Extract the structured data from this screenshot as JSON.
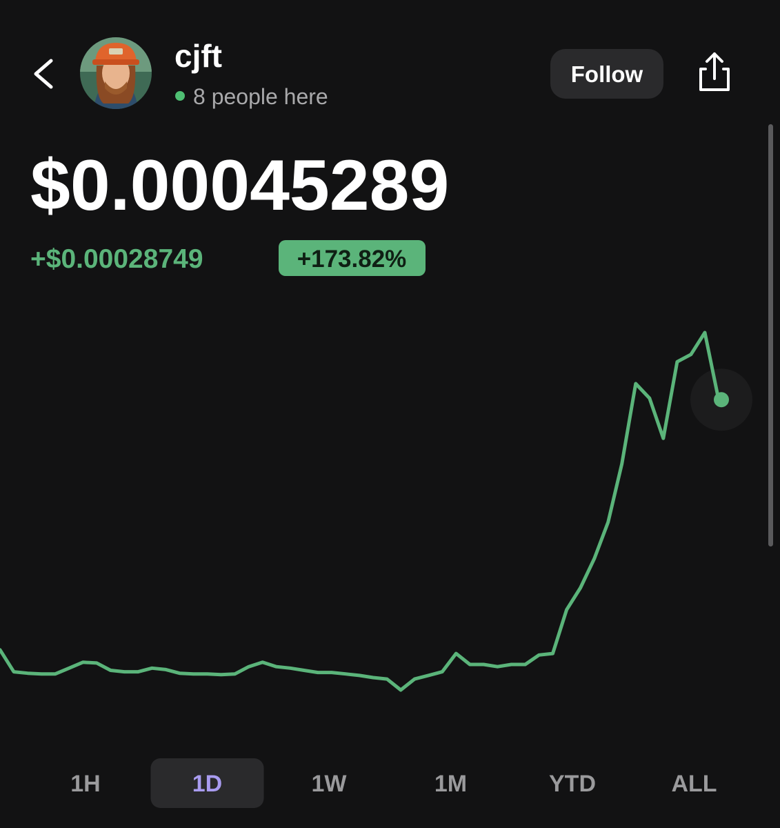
{
  "header": {
    "name": "cjft",
    "presence": "8 people here",
    "follow_button": "Follow"
  },
  "price": {
    "value": "$0.00045289",
    "change": "+$0.00028749",
    "change_percent": "+173.82%"
  },
  "chart_data": {
    "type": "line",
    "color": "#5bb47a",
    "values": [
      0.0001654,
      0.00014024,
      0.00013856,
      0.00013773,
      0.00013773,
      0.00014443,
      0.00015114,
      0.0001503,
      0.00014192,
      0.00014024,
      0.00014024,
      0.00014443,
      0.00014276,
      0.00013856,
      0.00013773,
      0.00013773,
      0.00013689,
      0.00013773,
      0.00014611,
      0.00015114,
      0.00014611,
      0.00014443,
      0.00014192,
      0.0001394,
      0.0001394,
      0.00013773,
      0.00013605,
      0.00013354,
      0.00013186,
      0.00011929,
      0.00013186,
      0.00013605,
      0.00014024,
      0.0001612,
      0.00014862,
      0.00014862,
      0.00014611,
      0.00014862,
      0.00014862,
      0.00015952,
      0.0001612,
      0.00021149,
      0.00023663,
      0.00027016,
      0.00031207,
      0.00037913,
      0.00047133,
      0.00045457,
      0.00040847,
      0.00049648,
      0.00050486,
      0.00053,
      0.00045289
    ]
  },
  "timeframes": [
    {
      "label": "1H"
    },
    {
      "label": "1D",
      "active": true
    },
    {
      "label": "1W"
    },
    {
      "label": "1M"
    },
    {
      "label": "YTD"
    },
    {
      "label": "ALL"
    }
  ]
}
